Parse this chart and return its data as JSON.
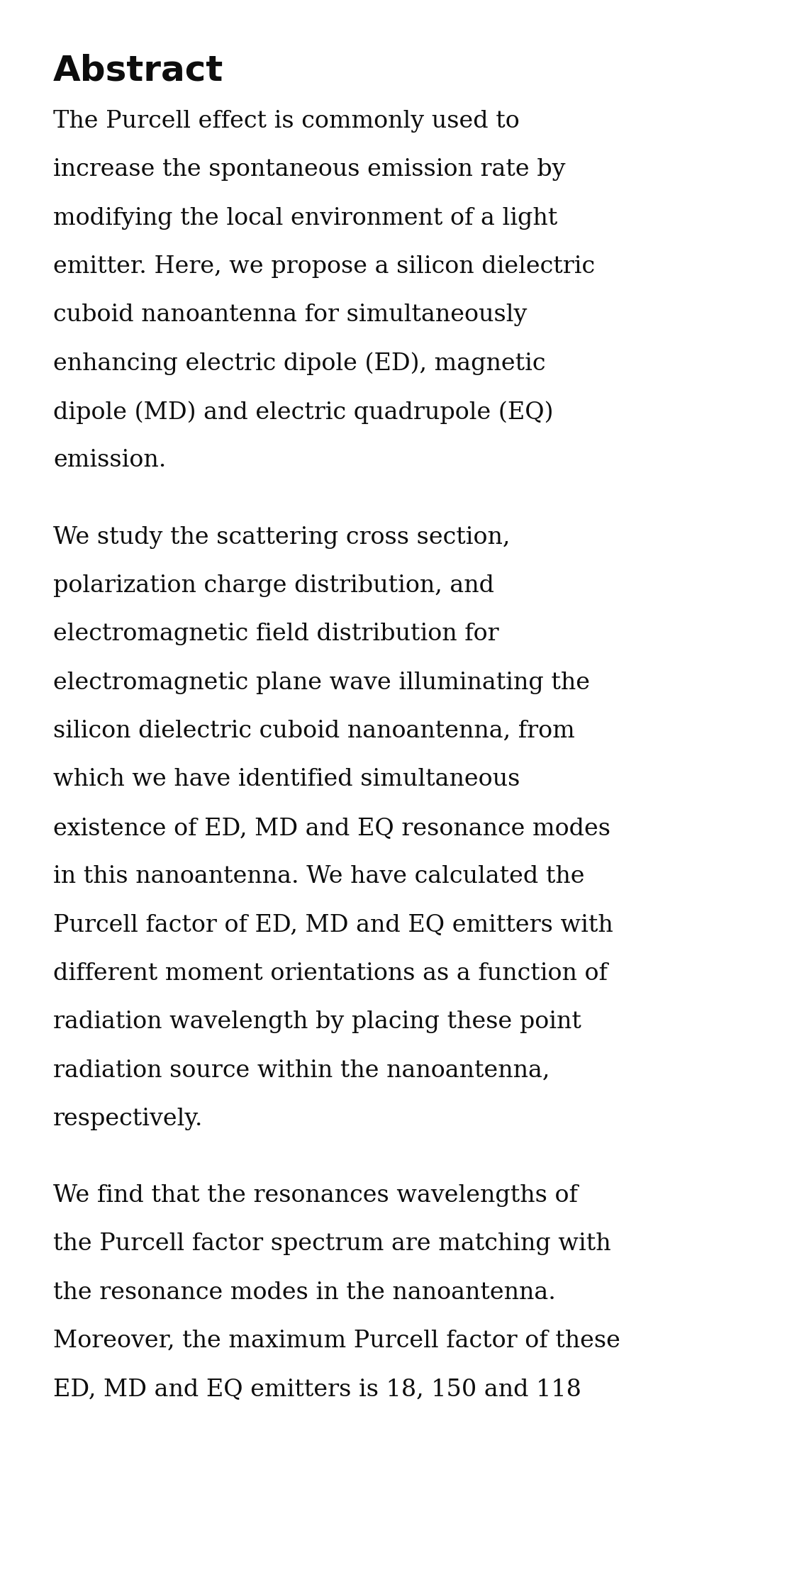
{
  "background_color": "#ffffff",
  "title": "Abstract",
  "title_fontsize": 36,
  "title_fontweight": "bold",
  "title_font": "DejaVu Sans",
  "body_font": "DejaVu Serif",
  "body_fontsize": 24,
  "text_color": "#0d0d0d",
  "paragraphs": [
    "The Purcell effect is commonly used to\nincrease the spontaneous emission rate by\nmodifying the local environment of a light\nemitter. Here, we propose a silicon dielectric\ncuboid nanoantenna for simultaneously\nenhancing electric dipole (ED), magnetic\ndipole (MD) and electric quadrupole (EQ)\nemission.",
    "We study the scattering cross section,\npolarization charge distribution, and\nelectromagnetic field distribution for\nelectromagnetic plane wave illuminating the\nsilicon dielectric cuboid nanoantenna, from\nwhich we have identified simultaneous\nexistence of ED, MD and EQ resonance modes\nin this nanoantenna. We have calculated the\nPurcell factor of ED, MD and EQ emitters with\ndifferent moment orientations as a function of\nradiation wavelength by placing these point\nradiation source within the nanoantenna,\nrespectively.",
    "We find that the resonances wavelengths of\nthe Purcell factor spectrum are matching with\nthe resonance modes in the nanoantenna.\nMoreover, the maximum Purcell factor of these\nED, MD and EQ emitters is 18, 150 and 118"
  ],
  "figwidth": 11.17,
  "figheight": 22.38,
  "dpi": 100
}
